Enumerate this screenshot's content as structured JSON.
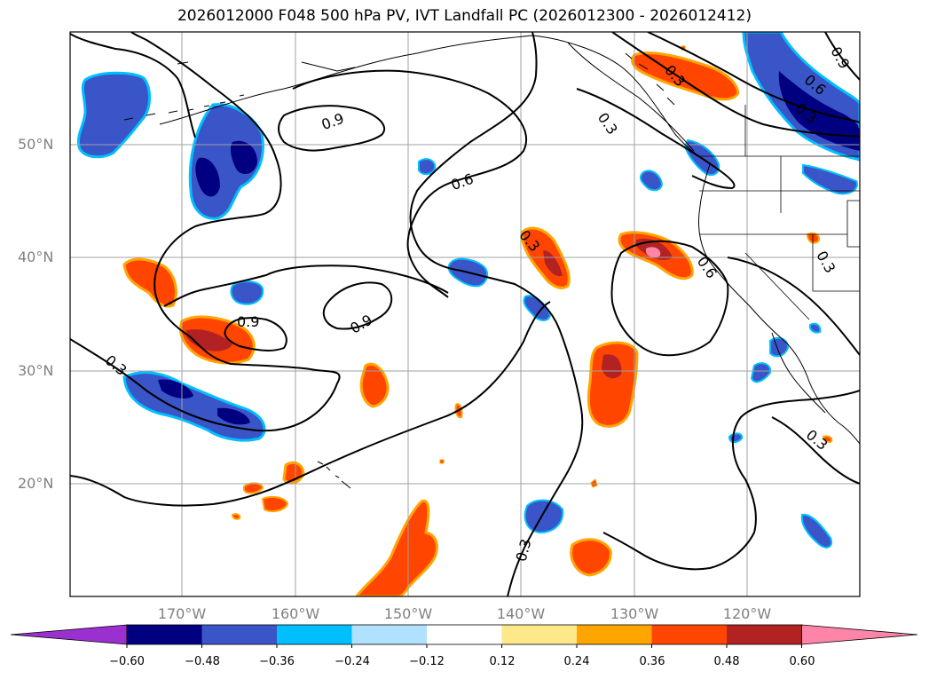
{
  "title": "2026012000 F048 500 hPa PV, IVT Landfall PC (2026012300 - 2026012412)",
  "lat_labels": [
    "50°N",
    "40°N",
    "30°N",
    "20°N"
  ],
  "lon_labels": [
    "170°W",
    "160°W",
    "150°W",
    "140°W",
    "130°W",
    "120°W"
  ],
  "contour_labels": {
    "c1": "0.9",
    "c2": "0.6",
    "c3": "0.3",
    "c4": "0.9",
    "c5": "0.9",
    "c6": "0.3",
    "c7": "0.3",
    "c8": "0.6",
    "c9": "0.3",
    "c10": "0.3",
    "c11": "0.3",
    "c12": "0.6",
    "c13": "0.3",
    "c14": "0.9",
    "c15": "0.3",
    "c16": "0.3",
    "c17": "0.3"
  },
  "colorbar": {
    "ticks": [
      "−0.60",
      "−0.48",
      "−0.36",
      "−0.24",
      "−0.12",
      "0.12",
      "0.24",
      "0.36",
      "0.48",
      "0.60"
    ],
    "colors": [
      "#9b30d0",
      "#000080",
      "#3a55c8",
      "#00bfff",
      "#b0e2ff",
      "#ffffff",
      "#ffe88a",
      "#ffa500",
      "#ff4500",
      "#b22222",
      "#ff85a8"
    ]
  },
  "colors": {
    "positive": "#ff4500",
    "positive_edge": "#ffa500",
    "positive_dark": "#b22222",
    "positive_max": "#ff85a8",
    "negative": "#3a55c8",
    "negative_edge": "#00bfff",
    "negative_dark": "#000080",
    "contour": "#000000",
    "grid": "#a0a0a0",
    "axis_label": "#808080"
  }
}
